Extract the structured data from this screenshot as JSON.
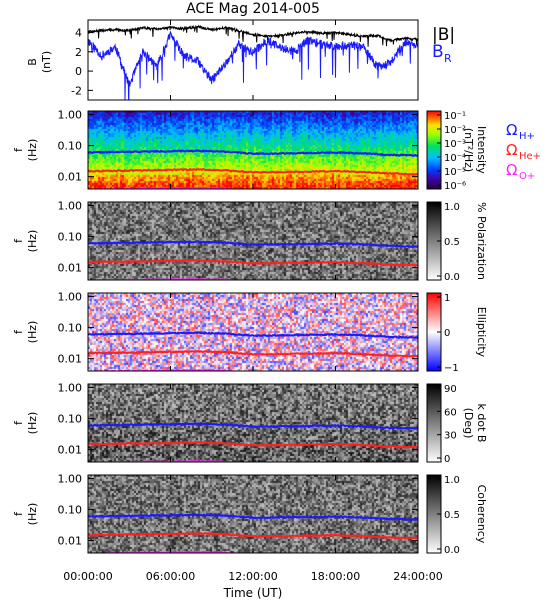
{
  "figure": {
    "title": "ACE Mag 2014-005",
    "xlabel": "Time (UT)",
    "x_ticks": [
      "00:00:00",
      "06:00:00",
      "12:00:00",
      "18:00:00",
      "24:00:00"
    ]
  },
  "colors": {
    "B_total": "#000000",
    "B_R": "#1a1aff",
    "H_plus": "#1a1aff",
    "He_plus": "#ff2020",
    "O_plus": "#ff20ff"
  },
  "legend": {
    "b_total": "|B|",
    "b_r": "B",
    "b_r_sub": "R",
    "omega": "Ω",
    "h_sub": "H+",
    "he_sub": "He+",
    "o_sub": "O+"
  },
  "chart_data": [
    {
      "type": "line",
      "panel": "magnetic-field",
      "ylabel": "B",
      "yunit": "(nT)",
      "ylim": [
        -3,
        5.3
      ],
      "y_ticks": [
        "4",
        "2",
        "0",
        "-2"
      ],
      "x": [
        0,
        1,
        2,
        3,
        4,
        5,
        6,
        7,
        8,
        9,
        10,
        11,
        12,
        13,
        14,
        15,
        16,
        17,
        18,
        19,
        20,
        21,
        22,
        23,
        24
      ],
      "series": [
        {
          "name": "|B|",
          "values": [
            4.1,
            4.2,
            4.3,
            4.2,
            4.5,
            4.4,
            4.5,
            4.4,
            4.6,
            4.3,
            4.5,
            4.2,
            3.8,
            3.6,
            3.7,
            3.9,
            4.1,
            3.9,
            4.0,
            3.8,
            3.6,
            3.7,
            3.2,
            3.4,
            3.3
          ]
        },
        {
          "name": "B_R",
          "values": [
            3.2,
            1.6,
            2.5,
            -1.5,
            2.0,
            0.5,
            3.8,
            1.5,
            1.0,
            -1.0,
            0.8,
            2.8,
            1.9,
            3.2,
            2.4,
            2.0,
            3.2,
            2.8,
            2.6,
            2.7,
            2.5,
            0.5,
            0.8,
            3.0,
            2.6
          ]
        }
      ]
    },
    {
      "type": "heatmap",
      "panel": "intensity",
      "ylabel": "f",
      "yunit": "(Hz)",
      "y_scale": "log",
      "ylim": [
        0.004,
        1.3
      ],
      "y_ticks": [
        "1.00",
        "0.10",
        "0.01"
      ],
      "colorbar": {
        "label": "Intensity",
        "unit": "(nT²/Hz)",
        "ticks": [
          "10⁻¹",
          "10⁻²",
          "10⁻³",
          "10⁻⁴",
          "10⁻⁵",
          "10⁻⁶"
        ]
      }
    },
    {
      "type": "heatmap",
      "panel": "polarization",
      "ylabel": "f",
      "yunit": "(Hz)",
      "y_scale": "log",
      "ylim": [
        0.004,
        1.3
      ],
      "y_ticks": [
        "1.00",
        "0.10",
        "0.01"
      ],
      "colorbar": {
        "label": "% Polarization",
        "unit": "",
        "ticks": [
          "1.0",
          "0.5",
          "0.0"
        ]
      }
    },
    {
      "type": "heatmap",
      "panel": "ellipticity",
      "ylabel": "f",
      "yunit": "(Hz)",
      "y_scale": "log",
      "ylim": [
        0.004,
        1.3
      ],
      "y_ticks": [
        "1.00",
        "0.10",
        "0.01"
      ],
      "colorbar": {
        "label": "Ellipticity",
        "unit": "",
        "ticks": [
          "1",
          "0",
          "−1"
        ]
      }
    },
    {
      "type": "heatmap",
      "panel": "k-dot-b",
      "ylabel": "f",
      "yunit": "(Hz)",
      "y_scale": "log",
      "ylim": [
        0.004,
        1.3
      ],
      "y_ticks": [
        "1.00",
        "0.10",
        "0.01"
      ],
      "colorbar": {
        "label": "k dot B",
        "unit": "(Deg)",
        "ticks": [
          "90",
          "60",
          "30",
          "0"
        ]
      }
    },
    {
      "type": "heatmap",
      "panel": "coherency",
      "ylabel": "f",
      "yunit": "(Hz)",
      "y_scale": "log",
      "ylim": [
        0.004,
        1.3
      ],
      "y_ticks": [
        "1.00",
        "0.10",
        "0.01"
      ],
      "colorbar": {
        "label": "Coherency",
        "unit": "",
        "ticks": [
          "1.0",
          "0.5",
          "0.0"
        ]
      }
    }
  ],
  "gyrofrequency_lines": {
    "x": [
      0,
      2,
      4,
      6,
      8,
      10,
      12,
      14,
      16,
      18,
      20,
      22,
      24
    ],
    "H_plus": [
      0.06,
      0.062,
      0.064,
      0.066,
      0.068,
      0.064,
      0.055,
      0.056,
      0.058,
      0.06,
      0.056,
      0.05,
      0.048
    ],
    "He_plus": [
      0.015,
      0.0155,
      0.016,
      0.0165,
      0.017,
      0.016,
      0.0138,
      0.014,
      0.0145,
      0.015,
      0.014,
      0.0125,
      0.012
    ],
    "O_plus": [
      0.0038,
      0.0039,
      0.004,
      0.0041,
      0.0042,
      0.004,
      0.0035,
      0.0035,
      0.0036,
      0.0038,
      0.0035,
      0.0032,
      0.0031
    ]
  }
}
